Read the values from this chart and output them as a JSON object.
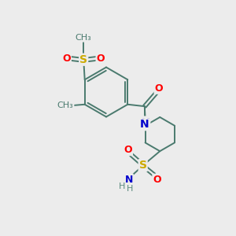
{
  "background_color": "#ececec",
  "bond_color": "#4a7a6e",
  "atom_colors": {
    "O": "#ff0000",
    "N": "#0000cc",
    "S": "#ccaa00",
    "H": "#5a8a7e",
    "C": "#4a7a6e"
  },
  "fig_width": 3.0,
  "fig_height": 3.0,
  "dpi": 100,
  "xlim": [
    0,
    10
  ],
  "ylim": [
    0,
    10
  ]
}
